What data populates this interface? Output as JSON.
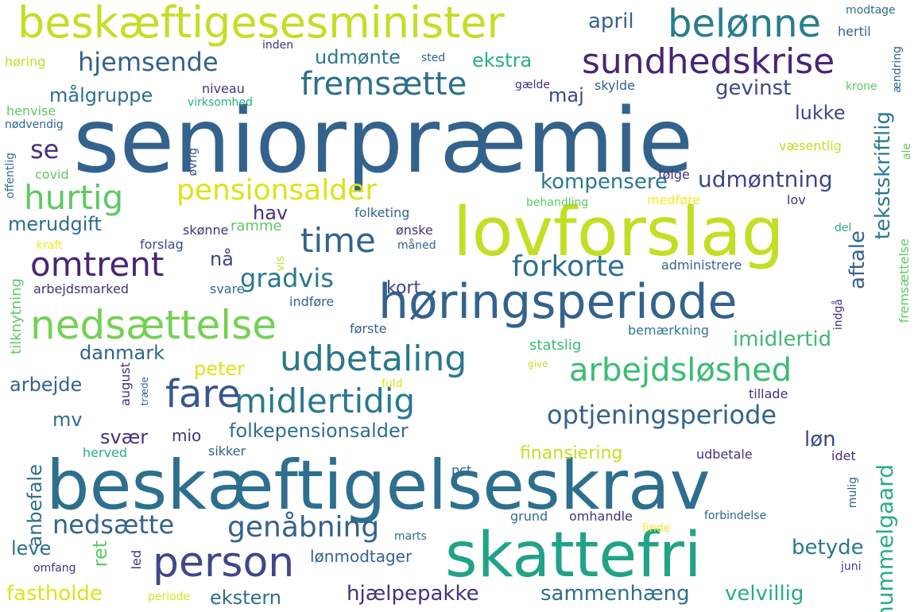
{
  "palette": {
    "dark_purple": "#46317e",
    "indigo": "#3f4788",
    "slate_blue": "#365c8d",
    "steel_blue": "#2d6f8e",
    "teal": "#21908d",
    "sea_green": "#29af7f",
    "green": "#5ec962",
    "lime": "#addc30",
    "yellow_green": "#c8e020",
    "yellow": "#fde725"
  },
  "words": [
    {
      "text": "seniorpræmie",
      "color": "#33638d"
    },
    {
      "text": "beskæftigelseskrav",
      "color": "#2d6f8e"
    },
    {
      "text": "lovforslag",
      "color": "#c2df23"
    },
    {
      "text": "beskæftigesesminister",
      "color": "#c2df23"
    },
    {
      "text": "høringsperiode",
      "color": "#33638d"
    },
    {
      "text": "skattefri",
      "color": "#20a386"
    },
    {
      "text": "sundhedskrise",
      "color": "#482576"
    },
    {
      "text": "nedsættelse",
      "color": "#75d054"
    },
    {
      "text": "udbetaling",
      "color": "#2a788e"
    },
    {
      "text": "belønne",
      "color": "#287d8e"
    },
    {
      "text": "arbejdsløshed",
      "color": "#3cbb75"
    },
    {
      "text": "midlertidig",
      "color": "#2a788e"
    },
    {
      "text": "optjeningsperiode",
      "color": "#33638d"
    },
    {
      "text": "fare",
      "color": "#39568c"
    },
    {
      "text": "person",
      "color": "#3f4788"
    },
    {
      "text": "fremsætte",
      "color": "#2d6f8e"
    },
    {
      "text": "hurtig",
      "color": "#5ec962"
    },
    {
      "text": "time",
      "color": "#33638d"
    },
    {
      "text": "pensionsalder",
      "color": "#dde318"
    },
    {
      "text": "omtrent",
      "color": "#482576"
    },
    {
      "text": "genåbning",
      "color": "#33638d"
    },
    {
      "text": "hjemsende",
      "color": "#33638d"
    },
    {
      "text": "gradvis",
      "color": "#2a788e"
    },
    {
      "text": "forkorte",
      "color": "#2d6f8e"
    },
    {
      "text": "folkepensionsalder",
      "color": "#2d6f8e"
    },
    {
      "text": "nedsætte",
      "color": "#33638d"
    },
    {
      "text": "hummelgaard",
      "color": "#29af7f"
    },
    {
      "text": "tekstskriftlig",
      "color": "#2a788e"
    },
    {
      "text": "udmøntning",
      "color": "#3f4788"
    },
    {
      "text": "kompensere",
      "color": "#2a788e"
    },
    {
      "text": "imidlertid",
      "color": "#3cbb75"
    },
    {
      "text": "aftale",
      "color": "#33638d"
    },
    {
      "text": "hjælpepakke",
      "color": "#46317e"
    },
    {
      "text": "sammenhæng",
      "color": "#2d6f8e"
    },
    {
      "text": "velvillig",
      "color": "#29af7f"
    },
    {
      "text": "udmønte",
      "color": "#2a788e"
    },
    {
      "text": "målgruppe",
      "color": "#2d6f8e"
    },
    {
      "text": "gevinst",
      "color": "#3f4788"
    },
    {
      "text": "ekstra",
      "color": "#29af7f"
    },
    {
      "text": "april",
      "color": "#33638d"
    },
    {
      "text": "merudgift",
      "color": "#2d6f8e"
    },
    {
      "text": "danmark",
      "color": "#33638d"
    },
    {
      "text": "arbejde",
      "color": "#33638d"
    },
    {
      "text": "anbefale",
      "color": "#2d6f8e"
    },
    {
      "text": "lønmodtager",
      "color": "#33638d"
    },
    {
      "text": "finansiering",
      "color": "#c2df23"
    },
    {
      "text": "fastholde",
      "color": "#dde318"
    },
    {
      "text": "ekstern",
      "color": "#2d6f8e"
    },
    {
      "text": "betyde",
      "color": "#2a788e"
    },
    {
      "text": "lukke",
      "color": "#3f4788"
    },
    {
      "text": "maj",
      "color": "#3f4788"
    },
    {
      "text": "hav",
      "color": "#46317e"
    },
    {
      "text": "kort",
      "color": "#3f4788"
    },
    {
      "text": "se",
      "color": "#46317e"
    },
    {
      "text": "nå",
      "color": "#3f4788"
    },
    {
      "text": "peter",
      "color": "#dde318"
    },
    {
      "text": "svær",
      "color": "#46317e"
    },
    {
      "text": "mio",
      "color": "#46317e"
    },
    {
      "text": "mv",
      "color": "#2d6f8e"
    },
    {
      "text": "løn",
      "color": "#3f4788"
    },
    {
      "text": "leve",
      "color": "#2d6f8e"
    },
    {
      "text": "ret",
      "color": "#5ec962"
    },
    {
      "text": "ramme",
      "color": "#5ec962"
    },
    {
      "text": "tilknytning",
      "color": "#5ec962"
    },
    {
      "text": "arbejdsmarked",
      "color": "#46317e"
    },
    {
      "text": "svare",
      "color": "#2d6f8e"
    },
    {
      "text": "indføre",
      "color": "#33638d"
    },
    {
      "text": "første",
      "color": "#33638d"
    },
    {
      "text": "folketing",
      "color": "#33638d"
    },
    {
      "text": "ønske",
      "color": "#46317e"
    },
    {
      "text": "måned",
      "color": "#33638d"
    },
    {
      "text": "skønne",
      "color": "#46317e"
    },
    {
      "text": "forslag",
      "color": "#3f4788"
    },
    {
      "text": "kraft",
      "color": "#fde725"
    },
    {
      "text": "covid",
      "color": "#5ec962"
    },
    {
      "text": "offentlig",
      "color": "#2d6f8e"
    },
    {
      "text": "øvrig",
      "color": "#3f4788"
    },
    {
      "text": "vis",
      "color": "#c2df23"
    },
    {
      "text": "niveau",
      "color": "#46317e"
    },
    {
      "text": "virksomhed",
      "color": "#29af7f"
    },
    {
      "text": "henvise",
      "color": "#5ec962"
    },
    {
      "text": "nødvendig",
      "color": "#33638d"
    },
    {
      "text": "høring",
      "color": "#c2df23"
    },
    {
      "text": "inden",
      "color": "#46317e"
    },
    {
      "text": "sted",
      "color": "#33638d"
    },
    {
      "text": "gælde",
      "color": "#46317e"
    },
    {
      "text": "skylde",
      "color": "#33638d"
    },
    {
      "text": "modtage",
      "color": "#2d6f8e"
    },
    {
      "text": "hertil",
      "color": "#33638d"
    },
    {
      "text": "ændring",
      "color": "#33638d"
    },
    {
      "text": "krone",
      "color": "#5ec962"
    },
    {
      "text": "væsentlig",
      "color": "#c2df23"
    },
    {
      "text": "ale",
      "color": "#5ec962"
    },
    {
      "text": "følge",
      "color": "#46317e"
    },
    {
      "text": "medføre",
      "color": "#fde725"
    },
    {
      "text": "lov",
      "color": "#46317e"
    },
    {
      "text": "del",
      "color": "#29af7f"
    },
    {
      "text": "behandling",
      "color": "#5ec962"
    },
    {
      "text": "administrere",
      "color": "#33638d"
    },
    {
      "text": "fremsættelse",
      "color": "#5ec962"
    },
    {
      "text": "indgå",
      "color": "#46317e"
    },
    {
      "text": "bemærkning",
      "color": "#2a788e"
    },
    {
      "text": "statslig",
      "color": "#3cbb75"
    },
    {
      "text": "give",
      "color": "#c2df23"
    },
    {
      "text": "fuld",
      "color": "#dde318"
    },
    {
      "text": "august",
      "color": "#46317e"
    },
    {
      "text": "træde",
      "color": "#33638d"
    },
    {
      "text": "tillade",
      "color": "#46317e"
    },
    {
      "text": "herved",
      "color": "#29af7f"
    },
    {
      "text": "sikker",
      "color": "#33638d"
    },
    {
      "text": "pct",
      "color": "#33638d"
    },
    {
      "text": "udbetale",
      "color": "#46317e"
    },
    {
      "text": "idet",
      "color": "#46317e"
    },
    {
      "text": "mulig",
      "color": "#33638d"
    },
    {
      "text": "grund",
      "color": "#2d6f8e"
    },
    {
      "text": "omhandle",
      "color": "#46317e"
    },
    {
      "text": "forbindelse",
      "color": "#33638d"
    },
    {
      "text": "finde",
      "color": "#fde725"
    },
    {
      "text": "marts",
      "color": "#2d6f8e"
    },
    {
      "text": "led",
      "color": "#46317e"
    },
    {
      "text": "omfang",
      "color": "#46317e"
    },
    {
      "text": "juni",
      "color": "#3f4788"
    },
    {
      "text": "periode",
      "color": "#dde318"
    }
  ]
}
